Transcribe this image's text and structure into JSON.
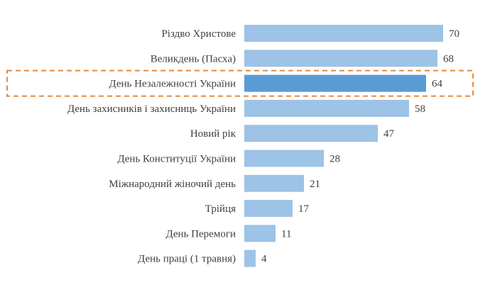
{
  "chart_data": {
    "type": "bar",
    "orientation": "horizontal",
    "categories": [
      "Різдво Христове",
      "Великдень (Пасха)",
      "День Незалежності України",
      "День захисників і захисниць України",
      "Новий рік",
      "День Конституції України",
      "Міжнародний жіночий день",
      "Трійця",
      "День Перемоги",
      "День праці (1 травня)"
    ],
    "values": [
      70,
      68,
      64,
      58,
      47,
      28,
      21,
      17,
      11,
      4
    ],
    "highlight_index": 2,
    "xlim": [
      0,
      70
    ],
    "colors": {
      "bar": "#9dc3e6",
      "highlight": "#5b9bd5",
      "box": "#e38a3c",
      "text": "#404040"
    }
  }
}
